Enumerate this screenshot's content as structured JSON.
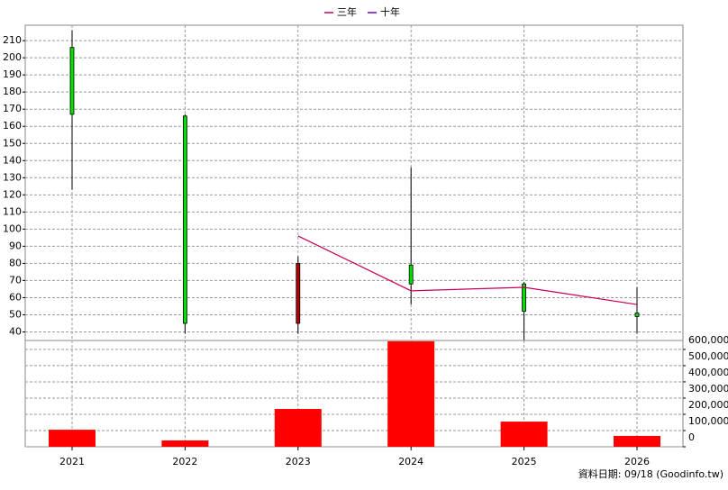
{
  "chart_data": [
    {
      "type": "candlestick",
      "categories": [
        "2021",
        "2022",
        "2023",
        "2024",
        "2025",
        "2026"
      ],
      "open": [
        206,
        166,
        45,
        79,
        68,
        51
      ],
      "high": [
        216,
        167,
        84,
        136,
        69,
        66
      ],
      "low": [
        123,
        39,
        39,
        56,
        35,
        39
      ],
      "close": [
        167,
        45,
        80,
        68,
        52,
        49
      ],
      "up_color": "#b00000",
      "down_color": "#00e000",
      "series": [
        {
          "name": "三年",
          "color": "#c8005a",
          "values": [
            null,
            null,
            96,
            64,
            66,
            56
          ]
        },
        {
          "name": "十年",
          "color": "#7000c0",
          "values": [
            null,
            null,
            null,
            null,
            null,
            null
          ]
        }
      ],
      "ylim": [
        35,
        219
      ],
      "yticks": [
        40,
        50,
        60,
        70,
        80,
        90,
        100,
        110,
        120,
        130,
        140,
        150,
        160,
        170,
        180,
        190,
        200,
        210
      ],
      "grid": true,
      "legend": "top"
    },
    {
      "type": "bar",
      "categories": [
        "2021",
        "2022",
        "2023",
        "2024",
        "2025",
        "2026"
      ],
      "values": [
        105000,
        39000,
        233000,
        650000,
        155000,
        67000
      ],
      "color": "#ff0000",
      "ylim": [
        0,
        655000
      ],
      "yticks": [
        0,
        {
          "value": 100000,
          "label": "100,000"
        },
        {
          "value": 200000,
          "label": "200,000"
        },
        {
          "value": 300000,
          "label": "300,000"
        },
        {
          "value": 400000,
          "label": "400,000"
        },
        {
          "value": 500000,
          "label": "500,000"
        },
        {
          "value": 600000,
          "label": "600,000"
        }
      ],
      "grid": true,
      "source": "資料日期: 09/18 (Goodinfo.tw)"
    }
  ]
}
